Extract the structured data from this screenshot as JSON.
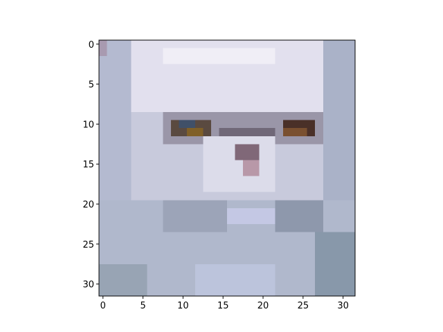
{
  "chart_data": {
    "type": "image",
    "xlim": [
      -0.5,
      31.5
    ],
    "ylim": [
      31.5,
      -0.5
    ],
    "xticks": [
      0,
      5,
      10,
      15,
      20,
      25,
      30
    ],
    "yticks": [
      0,
      5,
      10,
      15,
      20,
      25,
      30
    ]
  }
}
